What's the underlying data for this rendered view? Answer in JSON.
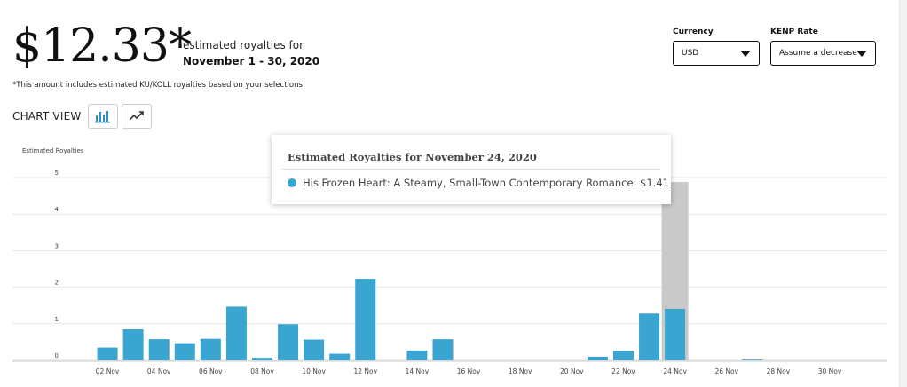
{
  "summary": {
    "amount": "$12.33*",
    "note": "estimated royalties for",
    "range": "November 1 - 30, 2020",
    "footnote": "*This amount includes estimated KU/KOLL royalties based on your selections"
  },
  "chart_view": {
    "label": "CHART VIEW",
    "bar_icon": "bar-chart-icon",
    "line_icon": "line-chart-icon",
    "active": "bar"
  },
  "filters": {
    "currency_label": "Currency",
    "currency_value": "USD",
    "kenp_label": "KENP Rate",
    "kenp_value": "Assume a decrease"
  },
  "tooltip": {
    "title": "Estimated Royalties for November 24, 2020",
    "item": "His Frozen Heart: A Steamy, Small-Town Contemporary Romance: $1.41"
  },
  "colors": {
    "bar": "#3aa5d0",
    "highlight": "#c9c9c9",
    "grid": "#e6e6e6",
    "accent_icon": "#2f8fc2"
  },
  "chart_data": {
    "type": "bar",
    "ylabel": "Estimated Royalties",
    "ylim": [
      0,
      5
    ],
    "yticks": [
      0,
      1,
      2,
      3,
      4,
      5
    ],
    "grid": true,
    "highlight_category": "24 Nov",
    "categories": [
      "01 Nov",
      "02 Nov",
      "03 Nov",
      "04 Nov",
      "05 Nov",
      "06 Nov",
      "07 Nov",
      "08 Nov",
      "09 Nov",
      "10 Nov",
      "11 Nov",
      "12 Nov",
      "13 Nov",
      "14 Nov",
      "15 Nov",
      "16 Nov",
      "17 Nov",
      "18 Nov",
      "19 Nov",
      "20 Nov",
      "21 Nov",
      "22 Nov",
      "23 Nov",
      "24 Nov",
      "25 Nov",
      "26 Nov",
      "27 Nov",
      "28 Nov",
      "29 Nov",
      "30 Nov"
    ],
    "xtick_labels": [
      "02 Nov",
      "04 Nov",
      "06 Nov",
      "08 Nov",
      "10 Nov",
      "12 Nov",
      "14 Nov",
      "16 Nov",
      "18 Nov",
      "20 Nov",
      "22 Nov",
      "24 Nov",
      "26 Nov",
      "28 Nov",
      "30 Nov"
    ],
    "values": [
      0,
      0.35,
      0.85,
      0.58,
      0.47,
      0.59,
      1.47,
      0.07,
      0.99,
      0.57,
      0.18,
      2.23,
      0,
      0.27,
      0.58,
      0,
      0,
      0,
      0,
      0,
      0.1,
      0.26,
      1.28,
      1.41,
      0,
      0,
      0.02,
      0,
      0,
      0
    ]
  }
}
